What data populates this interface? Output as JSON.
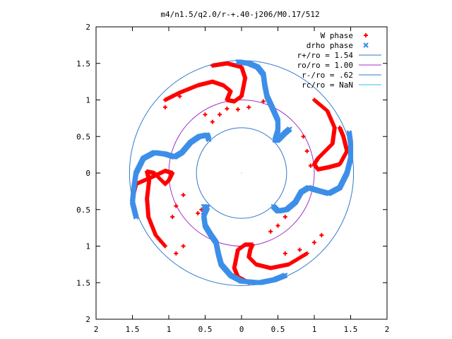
{
  "chart_data": {
    "type": "scatter",
    "title": "m4/n1.5/q2.0/r-+.40-j206/M0.17/512",
    "xlabel": "",
    "ylabel": "",
    "xlim": [
      -2,
      2
    ],
    "ylim": [
      -2,
      2
    ],
    "x_ticks": [
      -2,
      -1.5,
      -1,
      -0.5,
      0,
      0.5,
      1,
      1.5,
      2
    ],
    "y_ticks": [
      -2,
      -1.5,
      -1,
      -0.5,
      0,
      0.5,
      1,
      1.5,
      2
    ],
    "x_tick_labels": [
      "2",
      "1.5",
      "1",
      "0.5",
      "0",
      "0.5",
      "1",
      "1.5",
      "2"
    ],
    "y_tick_labels": [
      "2",
      "1.5",
      "1",
      "0.5",
      "0",
      "0.5",
      "1",
      "1.5",
      "2"
    ],
    "grid": false,
    "legend_position": "top-right",
    "series": [
      {
        "name": "W phase",
        "marker": "+",
        "color": "#ff0000",
        "kind": "points"
      },
      {
        "name": "drho phase",
        "marker": "x",
        "color": "#3d8fe8",
        "kind": "points"
      },
      {
        "name": "r+/ro = 1.54",
        "color": "#3079c8",
        "kind": "circle",
        "radius": 1.54
      },
      {
        "name": "ro/ro = 1.00",
        "color": "#a030c8",
        "kind": "circle",
        "radius": 1.0
      },
      {
        "name": "r-/ro = .62",
        "color": "#3079c8",
        "kind": "circle",
        "radius": 0.62
      },
      {
        "name": "rc/ro = NaN",
        "color": "#30c0e0",
        "kind": "circle",
        "radius": null
      }
    ],
    "blue_arms": [
      [
        [
          -0.05,
          1.52
        ],
        [
          0.1,
          1.5
        ],
        [
          0.22,
          1.45
        ],
        [
          0.3,
          1.35
        ],
        [
          0.32,
          1.2
        ],
        [
          0.35,
          1.05
        ],
        [
          0.42,
          0.9
        ],
        [
          0.5,
          0.72
        ],
        [
          0.5,
          0.58
        ],
        [
          0.46,
          0.45
        ],
        [
          0.5,
          0.45
        ],
        [
          0.6,
          0.55
        ],
        [
          0.66,
          0.6
        ]
      ],
      [
        [
          1.48,
          0.55
        ],
        [
          1.5,
          0.4
        ],
        [
          1.5,
          0.2
        ],
        [
          1.45,
          0
        ],
        [
          1.35,
          -0.2
        ],
        [
          1.2,
          -0.28
        ],
        [
          1.05,
          -0.24
        ],
        [
          0.92,
          -0.2
        ],
        [
          0.82,
          -0.26
        ],
        [
          0.74,
          -0.4
        ],
        [
          0.62,
          -0.5
        ],
        [
          0.5,
          -0.52
        ],
        [
          0.44,
          -0.46
        ]
      ],
      [
        [
          0.6,
          -1.4
        ],
        [
          0.45,
          -1.46
        ],
        [
          0.25,
          -1.5
        ],
        [
          0.0,
          -1.48
        ],
        [
          -0.15,
          -1.4
        ],
        [
          -0.28,
          -1.25
        ],
        [
          -0.32,
          -1.1
        ],
        [
          -0.35,
          -0.95
        ],
        [
          -0.42,
          -0.85
        ],
        [
          -0.5,
          -0.72
        ],
        [
          -0.52,
          -0.58
        ],
        [
          -0.47,
          -0.47
        ],
        [
          -0.52,
          -0.46
        ]
      ],
      [
        [
          -1.45,
          -0.6
        ],
        [
          -1.5,
          -0.4
        ],
        [
          -1.48,
          -0.2
        ],
        [
          -1.45,
          0
        ],
        [
          -1.35,
          0.2
        ],
        [
          -1.2,
          0.28
        ],
        [
          -1.05,
          0.26
        ],
        [
          -0.92,
          0.22
        ],
        [
          -0.82,
          0.28
        ],
        [
          -0.7,
          0.42
        ],
        [
          -0.58,
          0.5
        ],
        [
          -0.47,
          0.52
        ],
        [
          -0.45,
          0.46
        ]
      ]
    ],
    "red_arms": [
      [
        [
          -1.05,
          1.0
        ],
        [
          -0.85,
          1.1
        ],
        [
          -0.6,
          1.2
        ],
        [
          -0.4,
          1.25
        ],
        [
          -0.25,
          1.2
        ],
        [
          -0.15,
          1.12
        ],
        [
          -0.18,
          1.05
        ],
        [
          -0.2,
          1.0
        ],
        [
          -0.1,
          0.98
        ],
        [
          0.0,
          1.05
        ],
        [
          0.05,
          1.3
        ],
        [
          0.0,
          1.45
        ],
        [
          -0.2,
          1.5
        ],
        [
          -0.4,
          1.47
        ]
      ],
      [
        [
          1.0,
          1.0
        ],
        [
          1.18,
          0.85
        ],
        [
          1.28,
          0.62
        ],
        [
          1.25,
          0.4
        ],
        [
          1.15,
          0.3
        ],
        [
          1.05,
          0.2
        ],
        [
          1.0,
          0.12
        ],
        [
          1.05,
          0.05
        ],
        [
          1.2,
          0.08
        ],
        [
          1.35,
          0.12
        ],
        [
          1.45,
          0.3
        ],
        [
          1.4,
          0.5
        ],
        [
          1.35,
          0.62
        ]
      ],
      [
        [
          0.9,
          -1.1
        ],
        [
          0.65,
          -1.25
        ],
        [
          0.4,
          -1.3
        ],
        [
          0.2,
          -1.25
        ],
        [
          0.1,
          -1.15
        ],
        [
          0.12,
          -1.05
        ],
        [
          0.15,
          -0.98
        ],
        [
          0.05,
          -0.98
        ],
        [
          -0.05,
          -1.05
        ],
        [
          -0.1,
          -1.3
        ],
        [
          -0.05,
          -1.42
        ],
        [
          0.1,
          -1.5
        ]
      ],
      [
        [
          -1.05,
          -1.0
        ],
        [
          -1.18,
          -0.85
        ],
        [
          -1.28,
          -0.6
        ],
        [
          -1.3,
          -0.35
        ],
        [
          -1.27,
          -0.1
        ],
        [
          -1.3,
          0.02
        ],
        [
          -1.2,
          0.0
        ],
        [
          -1.05,
          -0.15
        ],
        [
          -1.0,
          -0.1
        ],
        [
          -0.95,
          0.0
        ],
        [
          -1.05,
          0.03
        ],
        [
          -1.22,
          -0.05
        ],
        [
          -1.45,
          -0.15
        ],
        [
          -1.5,
          -0.35
        ]
      ]
    ],
    "red_scattered": [
      [
        -0.5,
        0.8
      ],
      [
        -0.4,
        0.7
      ],
      [
        -0.3,
        0.8
      ],
      [
        -0.2,
        0.88
      ],
      [
        -0.05,
        0.87
      ],
      [
        0.1,
        0.9
      ],
      [
        0.3,
        0.98
      ],
      [
        -1.05,
        0.9
      ],
      [
        -0.95,
        1.05
      ],
      [
        -0.85,
        1.05
      ],
      [
        0.85,
        0.5
      ],
      [
        0.9,
        0.3
      ],
      [
        0.95,
        0.1
      ],
      [
        0.6,
        -0.6
      ],
      [
        0.5,
        -0.72
      ],
      [
        0.4,
        -0.8
      ],
      [
        0.6,
        -1.1
      ],
      [
        0.8,
        -1.05
      ],
      [
        1.0,
        -0.95
      ],
      [
        1.1,
        -0.85
      ],
      [
        -0.8,
        -0.3
      ],
      [
        -0.9,
        -0.45
      ],
      [
        -0.95,
        -0.6
      ],
      [
        -0.55,
        -0.5
      ],
      [
        -0.6,
        -0.55
      ],
      [
        -0.8,
        -1.0
      ],
      [
        -0.9,
        -1.1
      ]
    ]
  }
}
